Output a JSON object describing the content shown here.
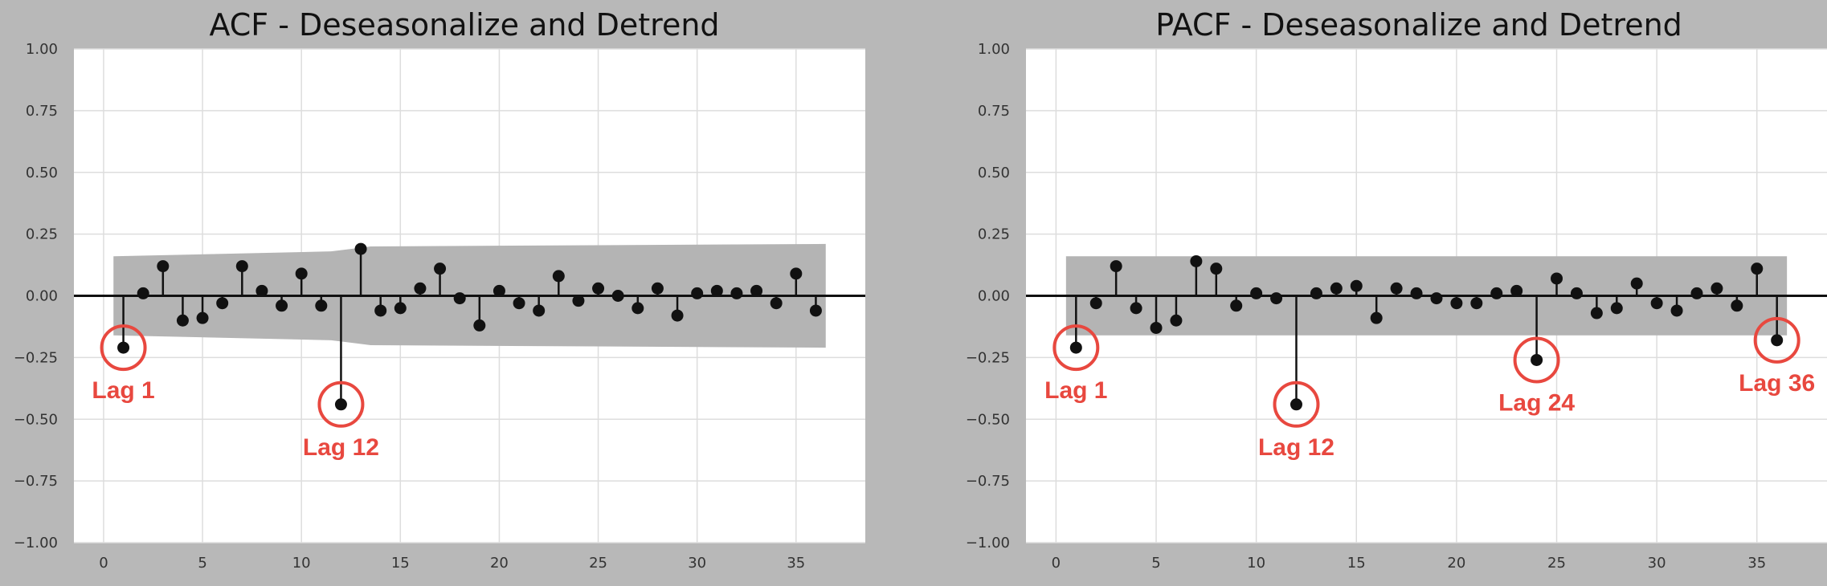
{
  "colors": {
    "background": "#b8b8b8",
    "plot_bg": "#ffffff",
    "grid": "#dddddd",
    "confidence_band": "#b4b4b4",
    "stem": "#111111",
    "annotation": "#e8483f"
  },
  "chart_data": [
    {
      "type": "stem",
      "title": "ACF - Deseasonalize and Detrend",
      "xlabel": "",
      "ylabel": "",
      "xlim": [
        -1.5,
        38.5
      ],
      "ylim": [
        -1.0,
        1.0
      ],
      "x_ticks": [
        0,
        5,
        10,
        15,
        20,
        25,
        30,
        35
      ],
      "x_tick_labels": [
        "0",
        "5",
        "10",
        "15",
        "20",
        "25",
        "30",
        "35"
      ],
      "y_ticks": [
        1.0,
        0.75,
        0.5,
        0.25,
        0.0,
        -0.25,
        -0.5,
        -0.75,
        -1.0
      ],
      "y_tick_labels": [
        "1.00",
        "0.75",
        "0.50",
        "0.25",
        "0.00",
        "−0.25",
        "−0.50",
        "−0.75",
        "−1.00"
      ],
      "grid": true,
      "lags": [
        1,
        2,
        3,
        4,
        5,
        6,
        7,
        8,
        9,
        10,
        11,
        12,
        13,
        14,
        15,
        16,
        17,
        18,
        19,
        20,
        21,
        22,
        23,
        24,
        25,
        26,
        27,
        28,
        29,
        30,
        31,
        32,
        33,
        34,
        35,
        36
      ],
      "values": [
        -0.21,
        0.01,
        0.12,
        -0.1,
        -0.09,
        -0.03,
        0.12,
        0.02,
        -0.04,
        0.09,
        -0.04,
        -0.44,
        0.19,
        -0.06,
        -0.05,
        0.03,
        0.11,
        -0.01,
        -0.12,
        0.02,
        -0.03,
        -0.06,
        0.08,
        -0.02,
        0.03,
        0.0,
        -0.05,
        0.03,
        -0.08,
        0.01,
        0.02,
        0.01,
        0.02,
        -0.03,
        0.09,
        -0.06
      ],
      "confidence_band": {
        "lags": [
          0.5,
          11.5,
          12.5,
          13.5,
          36.5
        ],
        "upper": [
          0.16,
          0.18,
          0.19,
          0.2,
          0.21
        ],
        "lower": [
          -0.16,
          -0.18,
          -0.19,
          -0.2,
          -0.21
        ]
      },
      "annotations": [
        {
          "lag": 1,
          "label": "Lag 1",
          "position": "below"
        },
        {
          "lag": 12,
          "label": "Lag 12",
          "position": "below"
        }
      ]
    },
    {
      "type": "stem",
      "title": "PACF - Deseasonalize and Detrend",
      "xlabel": "",
      "ylabel": "",
      "xlim": [
        -1.5,
        38.5
      ],
      "ylim": [
        -1.0,
        1.0
      ],
      "x_ticks": [
        0,
        5,
        10,
        15,
        20,
        25,
        30,
        35
      ],
      "x_tick_labels": [
        "0",
        "5",
        "10",
        "15",
        "20",
        "25",
        "30",
        "35"
      ],
      "y_ticks": [
        1.0,
        0.75,
        0.5,
        0.25,
        0.0,
        -0.25,
        -0.5,
        -0.75,
        -1.0
      ],
      "y_tick_labels": [
        "1.00",
        "0.75",
        "0.50",
        "0.25",
        "0.00",
        "−0.25",
        "−0.50",
        "−0.75",
        "−1.00"
      ],
      "grid": true,
      "lags": [
        1,
        2,
        3,
        4,
        5,
        6,
        7,
        8,
        9,
        10,
        11,
        12,
        13,
        14,
        15,
        16,
        17,
        18,
        19,
        20,
        21,
        22,
        23,
        24,
        25,
        26,
        27,
        28,
        29,
        30,
        31,
        32,
        33,
        34,
        35,
        36
      ],
      "values": [
        -0.21,
        -0.03,
        0.12,
        -0.05,
        -0.13,
        -0.1,
        0.14,
        0.11,
        -0.04,
        0.01,
        -0.01,
        -0.44,
        0.01,
        0.03,
        0.04,
        -0.09,
        0.03,
        0.01,
        -0.01,
        -0.03,
        -0.03,
        0.01,
        0.02,
        -0.26,
        0.07,
        0.01,
        -0.07,
        -0.05,
        0.05,
        -0.03,
        -0.06,
        0.01,
        0.03,
        -0.04,
        0.11,
        -0.18
      ],
      "confidence_band": {
        "lags": [
          0.5,
          36.5
        ],
        "upper": [
          0.16,
          0.16
        ],
        "lower": [
          -0.16,
          -0.16
        ]
      },
      "annotations": [
        {
          "lag": 1,
          "label": "Lag 1",
          "position": "below"
        },
        {
          "lag": 12,
          "label": "Lag 12",
          "position": "below"
        },
        {
          "lag": 24,
          "label": "Lag 24",
          "position": "below"
        },
        {
          "lag": 36,
          "label": "Lag 36",
          "position": "below"
        }
      ]
    }
  ]
}
